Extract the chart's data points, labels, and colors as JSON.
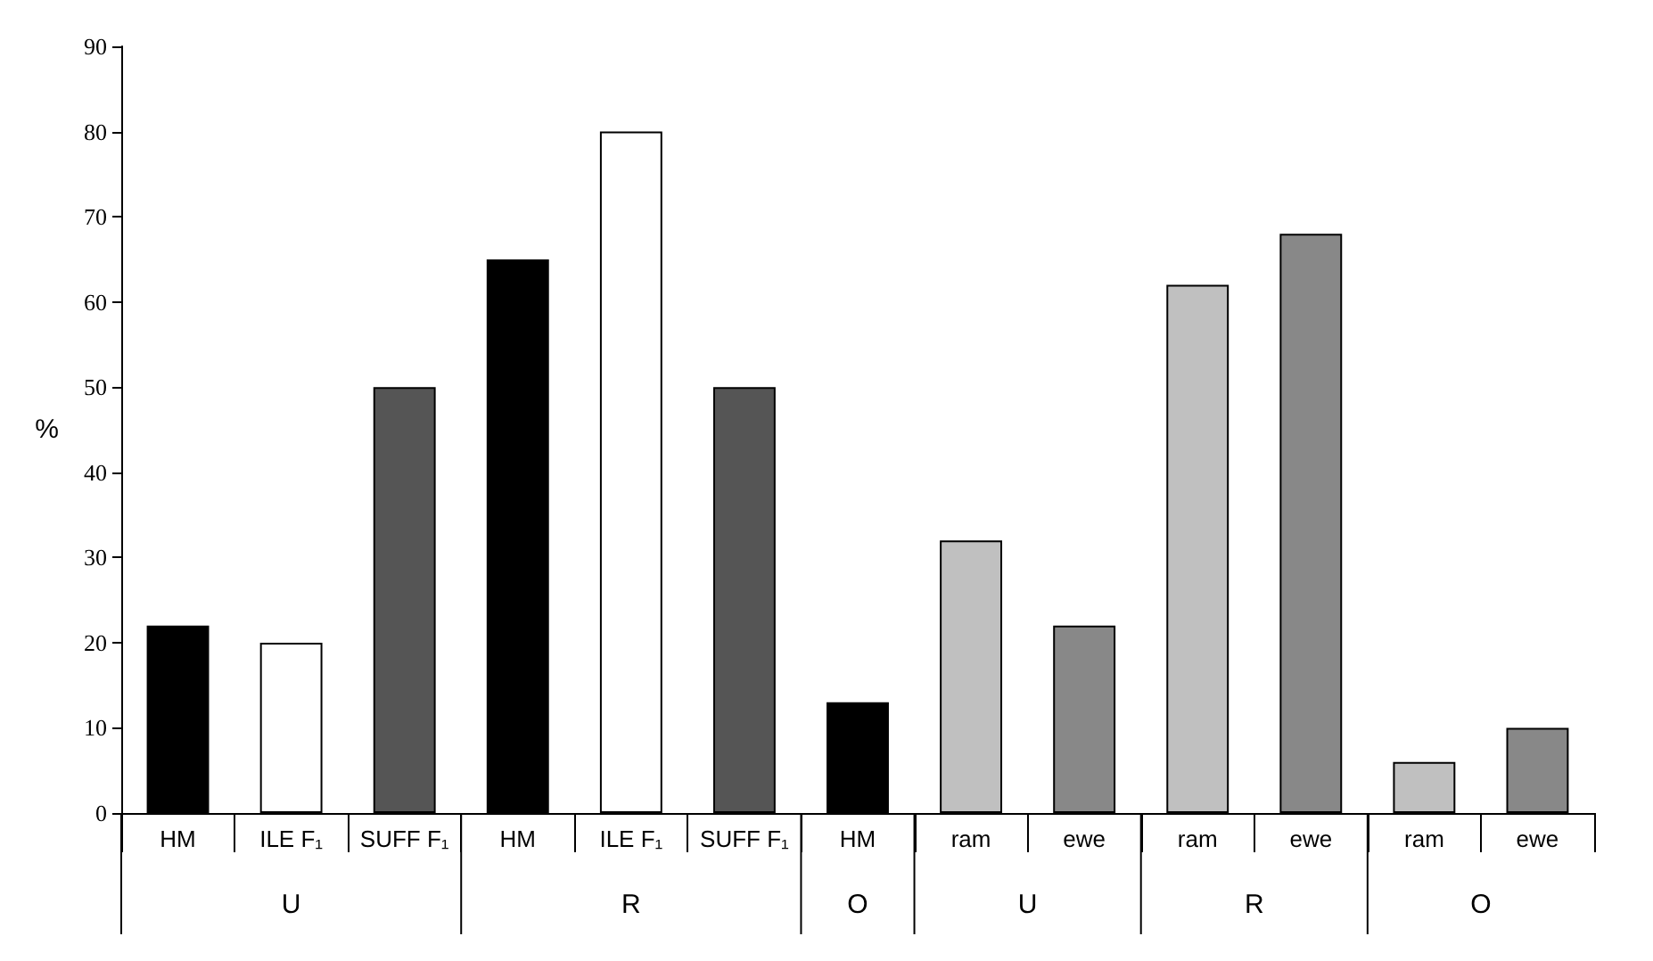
{
  "chart_data": {
    "type": "bar",
    "ylabel": "%",
    "categories": [
      "HM",
      "ILE F₁",
      "SUFF F₁",
      "HM",
      "ILE F₁",
      "SUFF F₁",
      "HM",
      "ram",
      "ewe",
      "ram",
      "ewe",
      "ram",
      "ewe"
    ],
    "values": [
      22,
      20,
      50,
      65,
      80,
      50,
      13,
      32,
      22,
      62,
      68,
      6,
      10
    ],
    "colors": [
      "#000000",
      "#ffffff",
      "#555555",
      "#000000",
      "#ffffff",
      "#555555",
      "#000000",
      "#c0c0c0",
      "#888888",
      "#c0c0c0",
      "#888888",
      "#c0c0c0",
      "#888888"
    ],
    "ylim": [
      0,
      90
    ],
    "yticks": [
      0,
      10,
      20,
      30,
      40,
      50,
      60,
      70,
      80,
      90
    ],
    "grid": false,
    "annotations": [
      "U",
      "R",
      "O",
      "U",
      "R",
      "O"
    ]
  }
}
